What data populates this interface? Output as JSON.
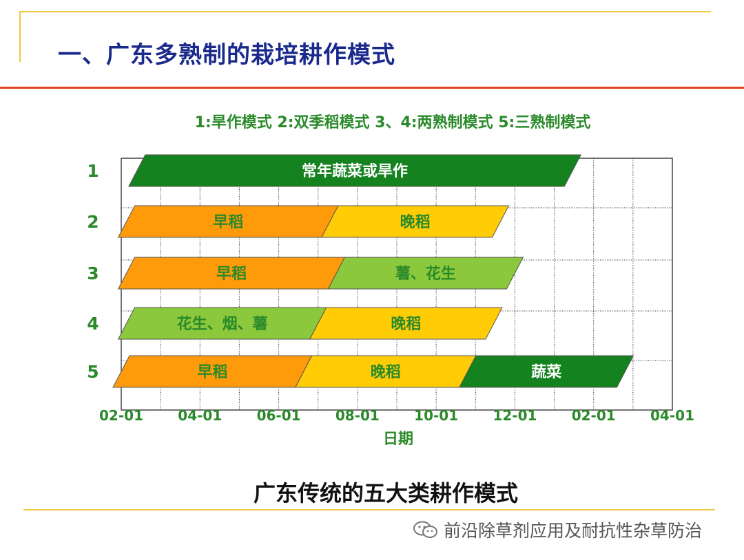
{
  "slide": {
    "title": "一、广东多熟制的栽培耕作模式",
    "legend": "1:旱作模式  2:双季稻模式  3、4:两熟制模式  5:三熟制模式",
    "caption": "广东传统的五大类耕作模式",
    "watermark": "前沿除草剂应用及耐抗性杂草防治",
    "watermark_icon": "wechat-icon"
  },
  "colors": {
    "dark_green": "#14821e",
    "orange": "#ff9a0a",
    "yellow": "#ffcc05",
    "light_green": "#8cc83c",
    "axis_text": "#2a8a2a",
    "title_blue": "#1a2a8c"
  },
  "chart_data": {
    "type": "gantt",
    "xlabel": "日期",
    "ylabel": "",
    "x_ticks": [
      "02-01",
      "04-01",
      "06-01",
      "08-01",
      "10-01",
      "12-01",
      "02-01",
      "04-01"
    ],
    "y_categories": [
      "1",
      "2",
      "3",
      "4",
      "5"
    ],
    "grid": true,
    "tasks": [
      {
        "row": "1",
        "label": "常年蔬菜或旱作",
        "start": "02-13",
        "end": "01-15",
        "color": "dark_green"
      },
      {
        "row": "2",
        "label": "早稻",
        "start": "02-05",
        "end": "07-10",
        "color": "orange"
      },
      {
        "row": "2",
        "label": "晚稻",
        "start": "07-10",
        "end": "11-20",
        "color": "yellow"
      },
      {
        "row": "3",
        "label": "早稻",
        "start": "02-05",
        "end": "07-15",
        "color": "orange"
      },
      {
        "row": "3",
        "label": "薯、花生",
        "start": "07-15",
        "end": "12-01",
        "color": "light_green"
      },
      {
        "row": "4",
        "label": "花生、烟、薯",
        "start": "02-05",
        "end": "07-01",
        "color": "light_green"
      },
      {
        "row": "4",
        "label": "晚稻",
        "start": "07-01",
        "end": "11-15",
        "color": "yellow"
      },
      {
        "row": "5",
        "label": "早稻",
        "start": "02-01",
        "end": "06-20",
        "color": "orange"
      },
      {
        "row": "5",
        "label": "晚稻",
        "start": "06-20",
        "end": "10-25",
        "color": "yellow"
      },
      {
        "row": "5",
        "label": "蔬菜",
        "start": "10-25",
        "end": "02-25",
        "color": "dark_green"
      }
    ]
  }
}
